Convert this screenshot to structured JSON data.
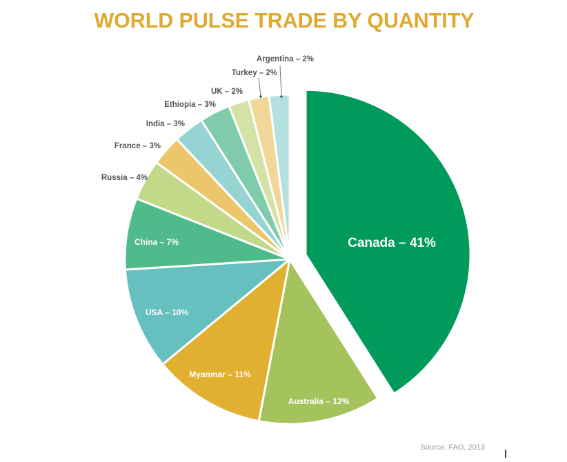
{
  "chart_data": {
    "type": "pie",
    "title": "WORLD PULSE TRADE BY QUANTITY",
    "source": "Source: FAO, 2013",
    "categories": [
      "Canada",
      "Australia",
      "Myanmar",
      "USA",
      "China",
      "Russia",
      "France",
      "India",
      "Ethiopia",
      "UK",
      "Turkey",
      "Argentina"
    ],
    "values": [
      41,
      12,
      11,
      10,
      7,
      4,
      3,
      3,
      3,
      2,
      2,
      2
    ],
    "value_labels": [
      "Canada – 41%",
      "Australia – 12%",
      "Myanmar – 11%",
      "USA – 10%",
      "China – 7%",
      "Russia – 4%",
      "France – 3%",
      "India – 3%",
      "Ethiopia – 3%",
      "UK – 2%",
      "Turkey – 2%",
      "Argentina – 2%"
    ],
    "colors": [
      "#009a5a",
      "#a4c35c",
      "#e2b030",
      "#66c0bf",
      "#4fba8a",
      "#c3d98a",
      "#ecc66a",
      "#96d3d3",
      "#80cbab",
      "#d4e2a6",
      "#f2d898",
      "#b4e0e0"
    ]
  }
}
